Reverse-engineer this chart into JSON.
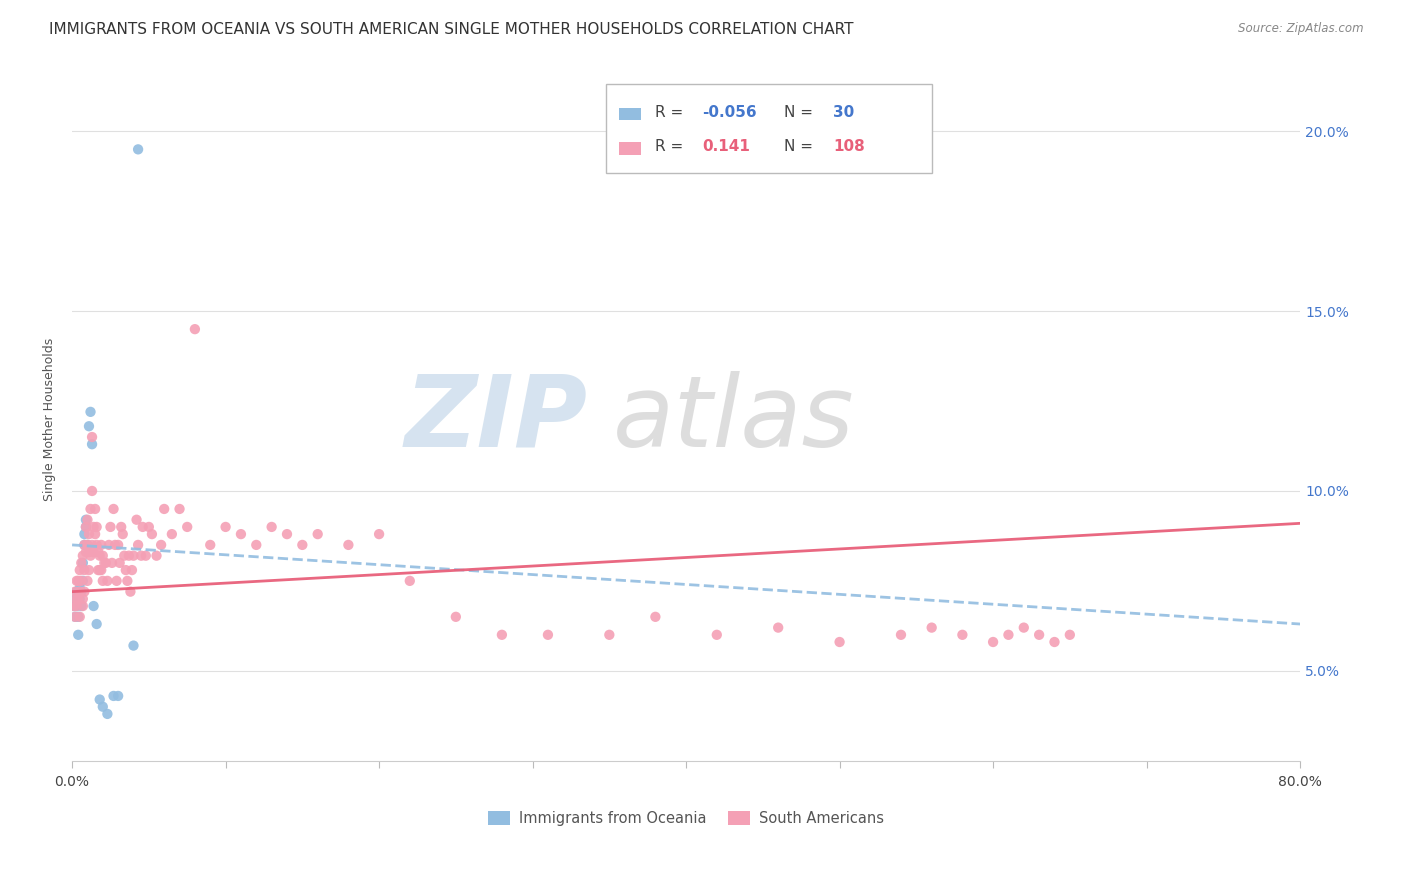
{
  "title": "IMMIGRANTS FROM OCEANIA VS SOUTH AMERICAN SINGLE MOTHER HOUSEHOLDS CORRELATION CHART",
  "source": "Source: ZipAtlas.com",
  "ylabel": "Single Mother Households",
  "x_tick_vals": [
    0.0,
    0.1,
    0.2,
    0.3,
    0.4,
    0.5,
    0.6,
    0.7,
    0.8
  ],
  "x_tick_labels": [
    "0.0%",
    "",
    "",
    "",
    "",
    "",
    "",
    "",
    "80.0%"
  ],
  "y_tick_vals": [
    0.05,
    0.1,
    0.15,
    0.2
  ],
  "y_tick_labels": [
    "5.0%",
    "10.0%",
    "15.0%",
    "20.0%"
  ],
  "xlim": [
    0.0,
    0.8
  ],
  "ylim": [
    0.025,
    0.215
  ],
  "legend_blue_R": "-0.056",
  "legend_blue_N": "30",
  "legend_pink_R": "0.141",
  "legend_pink_N": "108",
  "legend_label_blue": "Immigrants from Oceania",
  "legend_label_pink": "South Americans",
  "blue_color": "#92bde0",
  "pink_color": "#f4a0b5",
  "trend_blue_color": "#92bde0",
  "trend_pink_color": "#e8607a",
  "grid_color": "#e0e0e0",
  "blue_x": [
    0.001,
    0.002,
    0.002,
    0.003,
    0.003,
    0.004,
    0.004,
    0.005,
    0.005,
    0.006,
    0.006,
    0.007,
    0.007,
    0.008,
    0.008,
    0.009,
    0.009,
    0.01,
    0.011,
    0.012,
    0.013,
    0.014,
    0.016,
    0.018,
    0.02,
    0.023,
    0.027,
    0.03,
    0.04,
    0.043
  ],
  "blue_y": [
    0.068,
    0.07,
    0.065,
    0.072,
    0.068,
    0.065,
    0.06,
    0.07,
    0.073,
    0.068,
    0.072,
    0.075,
    0.08,
    0.085,
    0.088,
    0.09,
    0.092,
    0.085,
    0.118,
    0.122,
    0.113,
    0.068,
    0.063,
    0.042,
    0.04,
    0.038,
    0.043,
    0.043,
    0.057,
    0.195
  ],
  "pink_x": [
    0.001,
    0.002,
    0.002,
    0.003,
    0.003,
    0.003,
    0.004,
    0.004,
    0.005,
    0.005,
    0.005,
    0.006,
    0.006,
    0.007,
    0.007,
    0.007,
    0.008,
    0.008,
    0.008,
    0.009,
    0.009,
    0.01,
    0.01,
    0.01,
    0.011,
    0.011,
    0.011,
    0.012,
    0.012,
    0.013,
    0.013,
    0.013,
    0.014,
    0.014,
    0.015,
    0.015,
    0.016,
    0.016,
    0.017,
    0.017,
    0.018,
    0.018,
    0.019,
    0.019,
    0.02,
    0.02,
    0.021,
    0.022,
    0.023,
    0.024,
    0.025,
    0.026,
    0.027,
    0.028,
    0.029,
    0.03,
    0.031,
    0.032,
    0.033,
    0.034,
    0.035,
    0.036,
    0.037,
    0.038,
    0.039,
    0.04,
    0.042,
    0.043,
    0.045,
    0.046,
    0.048,
    0.05,
    0.052,
    0.055,
    0.058,
    0.06,
    0.065,
    0.07,
    0.075,
    0.08,
    0.09,
    0.1,
    0.11,
    0.12,
    0.13,
    0.14,
    0.15,
    0.16,
    0.18,
    0.2,
    0.22,
    0.25,
    0.28,
    0.31,
    0.35,
    0.38,
    0.42,
    0.46,
    0.5,
    0.54,
    0.56,
    0.58,
    0.6,
    0.61,
    0.62,
    0.63,
    0.64,
    0.65
  ],
  "pink_y": [
    0.068,
    0.072,
    0.065,
    0.07,
    0.075,
    0.068,
    0.075,
    0.07,
    0.065,
    0.078,
    0.072,
    0.08,
    0.075,
    0.082,
    0.07,
    0.068,
    0.085,
    0.078,
    0.072,
    0.09,
    0.083,
    0.092,
    0.085,
    0.075,
    0.088,
    0.083,
    0.078,
    0.082,
    0.095,
    0.1,
    0.085,
    0.115,
    0.09,
    0.083,
    0.095,
    0.088,
    0.09,
    0.085,
    0.083,
    0.078,
    0.082,
    0.078,
    0.085,
    0.078,
    0.082,
    0.075,
    0.08,
    0.08,
    0.075,
    0.085,
    0.09,
    0.08,
    0.095,
    0.085,
    0.075,
    0.085,
    0.08,
    0.09,
    0.088,
    0.082,
    0.078,
    0.075,
    0.082,
    0.072,
    0.078,
    0.082,
    0.092,
    0.085,
    0.082,
    0.09,
    0.082,
    0.09,
    0.088,
    0.082,
    0.085,
    0.095,
    0.088,
    0.095,
    0.09,
    0.145,
    0.085,
    0.09,
    0.088,
    0.085,
    0.09,
    0.088,
    0.085,
    0.088,
    0.085,
    0.088,
    0.075,
    0.065,
    0.06,
    0.06,
    0.06,
    0.065,
    0.06,
    0.062,
    0.058,
    0.06,
    0.062,
    0.06,
    0.058,
    0.06,
    0.062,
    0.06,
    0.058,
    0.06
  ],
  "blue_trend_x0": 0.0,
  "blue_trend_x1": 0.8,
  "blue_trend_y0": 0.085,
  "blue_trend_y1": 0.063,
  "pink_trend_x0": 0.0,
  "pink_trend_x1": 0.8,
  "pink_trend_y0": 0.072,
  "pink_trend_y1": 0.091
}
